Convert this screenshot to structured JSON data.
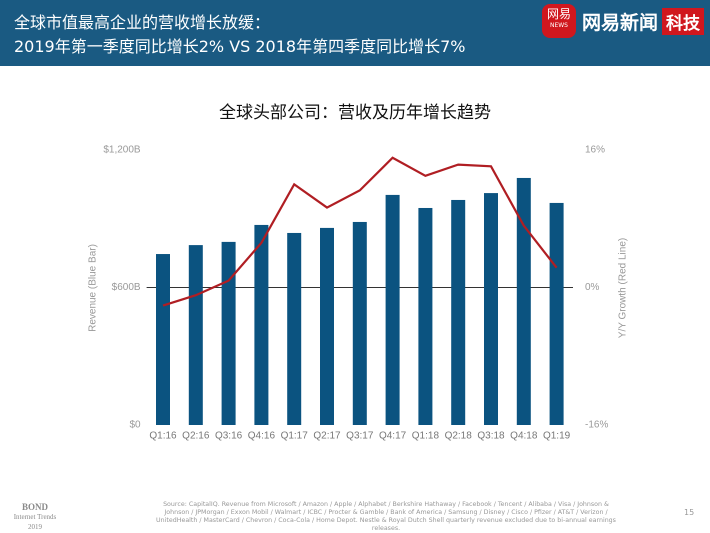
{
  "header": {
    "title_lines": [
      "全球市值最高企业的营收增长放缓：",
      "2019年第一季度同比增长2% VS 2018年第四季度同比增长7%"
    ]
  },
  "logo": {
    "badge": "网易",
    "badge_sub": "NEWS",
    "name": "网易新闻",
    "tag": "科技"
  },
  "chart_data": {
    "type": "bar_line",
    "title": "全球头部公司：营收及历年增长趋势",
    "y_label": "Revenue (Blue Bar)",
    "y2_label": "Y/Y Growth (Red Line)",
    "categories": [
      "Q1:16",
      "Q2:16",
      "Q3:16",
      "Q4:16",
      "Q1:17",
      "Q2:17",
      "Q3:17",
      "Q4:17",
      "Q1:18",
      "Q2:18",
      "Q3:18",
      "Q4:18",
      "Q1:19"
    ],
    "series": [
      {
        "name": "Revenue",
        "type": "bar",
        "color": "#0b5380",
        "values": [
          746,
          785,
          799,
          873,
          838,
          860,
          886,
          1004,
          947,
          982,
          1012,
          1078,
          969
        ]
      },
      {
        "name": "Y/Y Growth",
        "type": "line",
        "axis": "y2",
        "color": "#b01e23",
        "values": [
          -2.1,
          -0.9,
          0.8,
          5.2,
          12.0,
          9.3,
          11.3,
          15.1,
          13.0,
          14.3,
          14.1,
          7.2,
          2.3
        ]
      }
    ],
    "ylim": [
      0,
      1200
    ],
    "yticks": [
      {
        "value": 0,
        "label": "$0"
      },
      {
        "value": 600,
        "label": "$600B"
      },
      {
        "value": 1200,
        "label": "$1,200B"
      }
    ],
    "y2lim": [
      -16,
      16
    ],
    "y2ticks": [
      {
        "value": -16,
        "label": "-16%"
      },
      {
        "value": 0,
        "label": "0%"
      },
      {
        "value": 16,
        "label": "16%"
      }
    ]
  },
  "footer": {
    "brand": "BOND",
    "brand_sub": "Internet Trends",
    "year": "2019",
    "source": "Source: CapitalIQ. Revenue from Microsoft / Amazon / Apple / Alphabet / Berkshire Hathaway / Facebook / Tencent / Alibaba / Visa / Johnson & Johnson / JPMorgan / Exxon Mobil / Walmart / ICBC / Procter & Gamble / Bank of America / Samsung / Disney / Cisco / Pfizer / AT&T / Verizon / UnitedHealth / MasterCard / Chevron / Coca-Cola / Home Depot. Nestle & Royal Dutch Shell quarterly revenue excluded due to bi-annual earnings releases.",
    "page": "15"
  }
}
